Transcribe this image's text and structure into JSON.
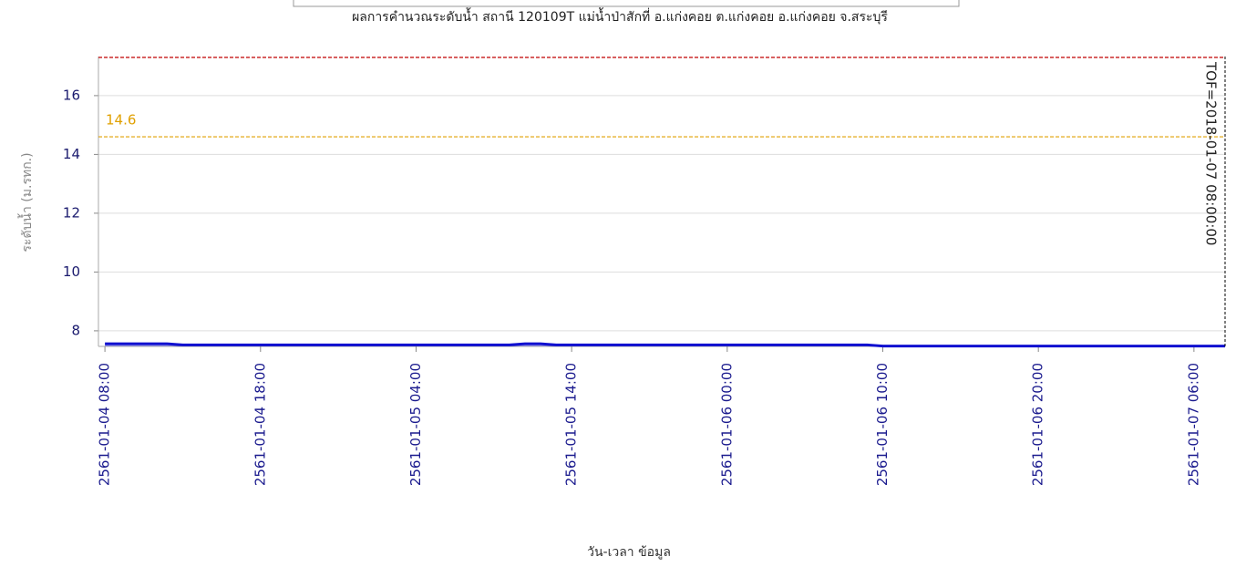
{
  "chart_data": {
    "type": "area",
    "title": "ผลการคำนวณระดับน้ำ สถานี 120109T แม่น้ำป่าสักที่ อ.แก่งคอย ต.แก่งคอย อ.แก่งคอย จ.สระบุรี",
    "xlabel": "วัน-เวลา ข้อมูล",
    "ylabel": "ระดับน้ำ (ม.รทก.)",
    "x": [
      "2561-01-04 08:00",
      "2561-01-04 12:00",
      "2561-01-04 13:00",
      "2561-01-05 10:00",
      "2561-01-05 11:00",
      "2561-01-05 12:00",
      "2561-01-05 13:00",
      "2561-01-06 09:00",
      "2561-01-06 10:00",
      "2561-01-07 08:00"
    ],
    "series": [
      {
        "color": "#1010d0",
        "values": [
          7.56,
          7.56,
          7.52,
          7.52,
          7.56,
          7.56,
          7.52,
          7.52,
          7.48,
          7.48
        ]
      }
    ],
    "xlim": [
      "2561-01-04 07:35",
      "2561-01-07 08:00"
    ],
    "xticks": [
      "2561-01-04 08:00",
      "2561-01-04 18:00",
      "2561-01-05 04:00",
      "2561-01-05 14:00",
      "2561-01-06 00:00",
      "2561-01-06 10:00",
      "2561-01-06 20:00",
      "2561-01-07 06:00"
    ],
    "ylim": [
      7.47,
      17.33
    ],
    "yticks": [
      8,
      10,
      12,
      14,
      16
    ],
    "grid": true,
    "ref_lines": [
      {
        "value": 14.6,
        "label": "14.6",
        "color": "#e0a000"
      },
      {
        "value": 17.3,
        "color": "#c00000"
      }
    ],
    "tof": {
      "x": "2561-01-07 08:00",
      "label": "TOF=2018-01-07 08:00:00"
    }
  }
}
